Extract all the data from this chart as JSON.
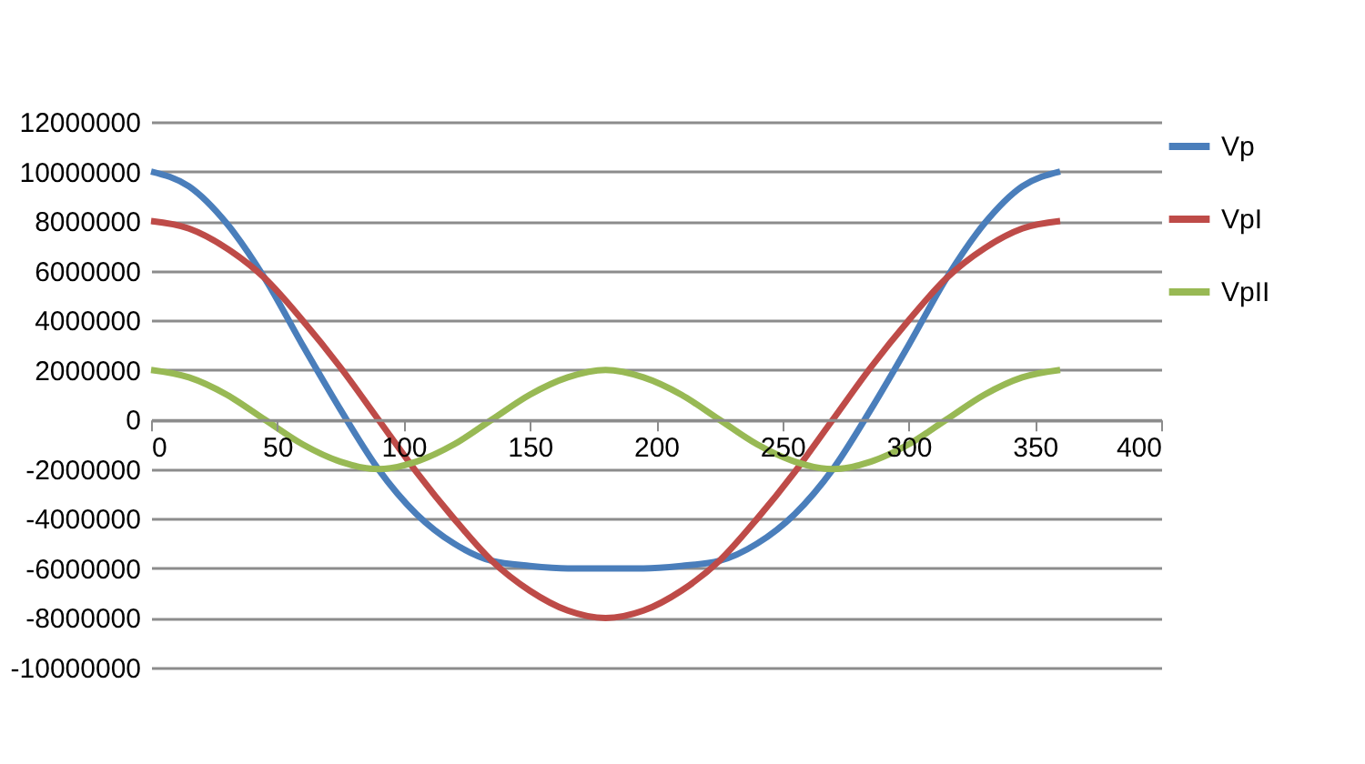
{
  "chart_data": {
    "type": "line",
    "x": [
      0,
      15,
      30,
      45,
      60,
      75,
      90,
      105,
      120,
      135,
      150,
      165,
      180,
      195,
      210,
      225,
      240,
      255,
      270,
      285,
      300,
      315,
      330,
      345,
      360
    ],
    "series": [
      {
        "name": "Vp",
        "color": "#4a7ebb",
        "values": [
          10000000,
          9400000,
          7900000,
          5700000,
          3000000,
          400000,
          -2000000,
          -3800000,
          -5000000,
          -5700000,
          -5900000,
          -6000000,
          -6000000,
          -6000000,
          -5900000,
          -5700000,
          -5000000,
          -3800000,
          -2000000,
          400000,
          3000000,
          5700000,
          7900000,
          9400000,
          10000000
        ]
      },
      {
        "name": "VpI",
        "color": "#be4b48",
        "values": [
          8000000,
          7700000,
          6900000,
          5700000,
          4000000,
          2100000,
          0,
          -2100000,
          -4000000,
          -5700000,
          -6900000,
          -7700000,
          -8000000,
          -7700000,
          -6900000,
          -5700000,
          -4000000,
          -2100000,
          0,
          2100000,
          4000000,
          5700000,
          6900000,
          7700000,
          8000000
        ]
      },
      {
        "name": "VpII",
        "color": "#98b954",
        "values": [
          2000000,
          1700000,
          1000000,
          0,
          -1000000,
          -1700000,
          -2000000,
          -1700000,
          -1000000,
          0,
          1000000,
          1700000,
          2000000,
          1700000,
          1000000,
          0,
          -1000000,
          -1700000,
          -2000000,
          -1700000,
          -1000000,
          0,
          1000000,
          1700000,
          2000000
        ]
      }
    ],
    "xlim": [
      0,
      400
    ],
    "xticks": [
      0,
      50,
      100,
      150,
      200,
      250,
      300,
      350,
      400
    ],
    "ylim": [
      -10000000,
      12000000
    ],
    "yticks": [
      -10000000,
      -8000000,
      -6000000,
      -4000000,
      -2000000,
      0,
      2000000,
      4000000,
      6000000,
      8000000,
      10000000,
      12000000
    ],
    "grid": "y",
    "legend": "right",
    "marker": "none",
    "line_style": "solid"
  }
}
